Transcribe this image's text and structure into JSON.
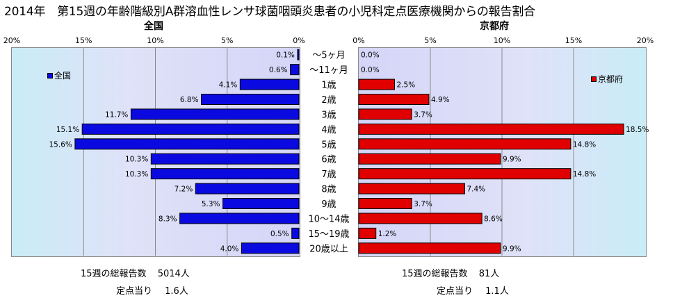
{
  "title": "2014年　第15週の年齢階級別A群溶血性レンサ球菌咽頭炎患者の小児科定点医療機関からの報告割合",
  "colors": {
    "national": "#0a0ae0",
    "kyoto": "#e00000"
  },
  "summary": {
    "left": {
      "total_label": "15週の総報告数",
      "total_value": "5014人",
      "per_label": "定点当り",
      "per_value": "1.6人"
    },
    "right": {
      "total_label": "15週の総報告数",
      "total_value": "81人",
      "per_label": "定点当り",
      "per_value": "1.1人"
    }
  },
  "chart_data": [
    {
      "type": "bar",
      "orientation": "horizontal",
      "direction": "right-to-left",
      "title": "全国",
      "legend": {
        "label": "全国",
        "position": "top-left"
      },
      "xlim": [
        0,
        20
      ],
      "tick_labels": [
        "20%",
        "15%",
        "10%",
        "5%",
        "0%"
      ],
      "tick_values": [
        20,
        15,
        10,
        5,
        0
      ],
      "grid": true,
      "categories": [
        "～5ヶ月",
        "～11ヶ月",
        "1歳",
        "2歳",
        "3歳",
        "4歳",
        "5歳",
        "6歳",
        "7歳",
        "8歳",
        "9歳",
        "10～14歳",
        "15～19歳",
        "20歳以上"
      ],
      "values": [
        0.1,
        0.6,
        4.1,
        6.8,
        11.7,
        15.1,
        15.6,
        10.3,
        10.3,
        7.2,
        5.3,
        8.3,
        0.5,
        4.0
      ],
      "data_labels": [
        "0.1%",
        "0.6%",
        "4.1%",
        "6.8%",
        "11.7%",
        "15.1%",
        "15.6%",
        "10.3%",
        "10.3%",
        "7.2%",
        "5.3%",
        "8.3%",
        "0.5%",
        "4.0%"
      ],
      "color": "#0a0ae0"
    },
    {
      "type": "bar",
      "orientation": "horizontal",
      "direction": "left-to-right",
      "title": "京都府",
      "legend": {
        "label": "京都府",
        "position": "top-right"
      },
      "xlim": [
        0,
        20
      ],
      "tick_labels": [
        "0%",
        "5%",
        "10%",
        "15%",
        "20%"
      ],
      "tick_values": [
        0,
        5,
        10,
        15,
        20
      ],
      "grid": true,
      "categories": [
        "～5ヶ月",
        "～11ヶ月",
        "1歳",
        "2歳",
        "3歳",
        "4歳",
        "5歳",
        "6歳",
        "7歳",
        "8歳",
        "9歳",
        "10～14歳",
        "15～19歳",
        "20歳以上"
      ],
      "values": [
        0.0,
        0.0,
        2.5,
        4.9,
        3.7,
        18.5,
        14.8,
        9.9,
        14.8,
        7.4,
        3.7,
        8.6,
        1.2,
        9.9
      ],
      "data_labels": [
        "0.0%",
        "0.0%",
        "2.5%",
        "4.9%",
        "3.7%",
        "18.5%",
        "14.8%",
        "9.9%",
        "14.8%",
        "7.4%",
        "3.7%",
        "8.6%",
        "1.2%",
        "9.9%"
      ],
      "color": "#e00000"
    }
  ]
}
